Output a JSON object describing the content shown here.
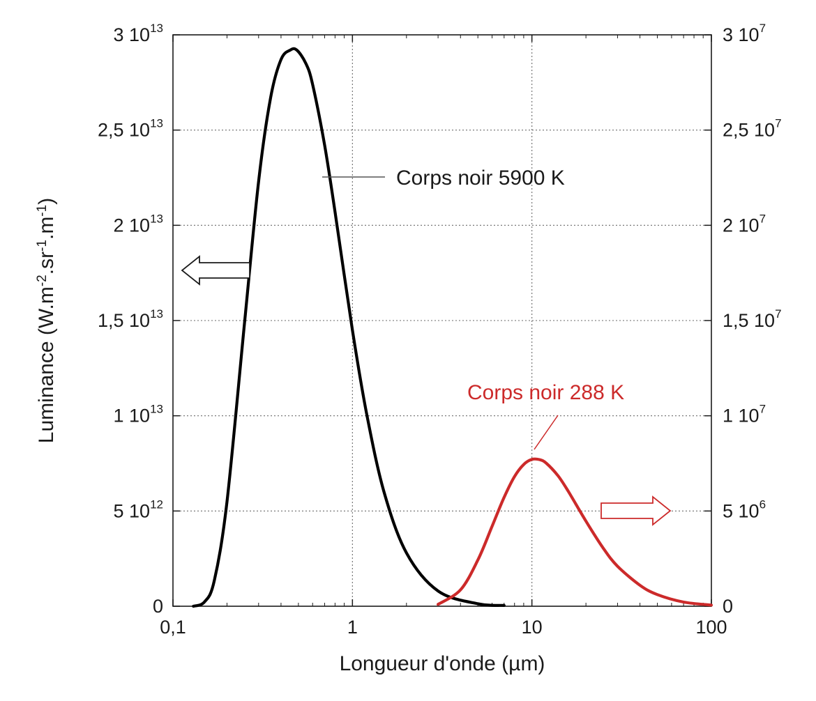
{
  "chart_data": {
    "type": "line",
    "xscale": "log",
    "xlim": [
      0.1,
      100
    ],
    "x_ticks": [
      {
        "value": 0.1,
        "label": "0,1"
      },
      {
        "value": 1,
        "label": "1"
      },
      {
        "value": 10,
        "label": "10"
      },
      {
        "value": 100,
        "label": "100"
      }
    ],
    "xlabel": "Longueur d'onde (µm)",
    "ylabel": "Luminance (W.m-2.sr-1.m-1)",
    "ylabel_parts": [
      {
        "text": "Luminance (W.m",
        "sup": false
      },
      {
        "text": "-2",
        "sup": true
      },
      {
        "text": ".sr",
        "sup": false
      },
      {
        "text": "-1",
        "sup": true
      },
      {
        "text": ".m",
        "sup": false
      },
      {
        "text": "-1",
        "sup": true
      },
      {
        "text": ")",
        "sup": false
      }
    ],
    "ylim_left": [
      0,
      30000000000000.0
    ],
    "ylim_right": [
      0,
      30000000.0
    ],
    "y_ticks_left": [
      {
        "value": 0,
        "mant": "0",
        "exp": ""
      },
      {
        "value": 5000000000000.0,
        "mant": "5 10",
        "exp": "12"
      },
      {
        "value": 10000000000000.0,
        "mant": "1 10",
        "exp": "13"
      },
      {
        "value": 15000000000000.0,
        "mant": "1,5 10",
        "exp": "13"
      },
      {
        "value": 20000000000000.0,
        "mant": "2 10",
        "exp": "13"
      },
      {
        "value": 25000000000000.0,
        "mant": "2,5 10",
        "exp": "13"
      },
      {
        "value": 30000000000000.0,
        "mant": "3 10",
        "exp": "13"
      }
    ],
    "y_ticks_right": [
      {
        "value": 0,
        "mant": "0",
        "exp": ""
      },
      {
        "value": 5000000.0,
        "mant": "5 10",
        "exp": "6"
      },
      {
        "value": 10000000.0,
        "mant": "1 10",
        "exp": "7"
      },
      {
        "value": 15000000.0,
        "mant": "1,5 10",
        "exp": "7"
      },
      {
        "value": 20000000.0,
        "mant": "2 10",
        "exp": "7"
      },
      {
        "value": 25000000.0,
        "mant": "2,5 10",
        "exp": "7"
      },
      {
        "value": 30000000.0,
        "mant": "3 10",
        "exp": "7"
      }
    ],
    "grid": true,
    "series": [
      {
        "name": "Corps noir 5900 K",
        "axis": "left",
        "color": "#000000",
        "x": [
          0.13,
          0.15,
          0.17,
          0.2,
          0.25,
          0.3,
          0.35,
          0.4,
          0.45,
          0.49,
          0.55,
          0.6,
          0.7,
          0.8,
          1.0,
          1.2,
          1.5,
          2.0,
          3.0,
          5.0,
          7.0
        ],
        "y": [
          0,
          230000000000.0,
          1350000000000.0,
          5500000000000.0,
          14800000000000.0,
          22300000000000.0,
          26700000000000.0,
          28700000000000.0,
          29200000000000.0,
          29200000000000.0,
          28500000000000.0,
          27400000000000.0,
          24200000000000.0,
          20700000000000.0,
          14500000000000.0,
          10100000000000.0,
          6000000000000.0,
          2800000000000.0,
          800000000000.0,
          130000000000.0,
          40000000000.0
        ]
      },
      {
        "name": "Corps noir 288 K",
        "axis": "right",
        "color": "#cc2a2a",
        "x": [
          3.0,
          4.0,
          5.0,
          6.0,
          7.0,
          8.0,
          9.0,
          10.0,
          11.0,
          12.0,
          14.0,
          16.0,
          20.0,
          25.0,
          30.0,
          40.0,
          50.0,
          70.0,
          100.0
        ],
        "y": [
          100000.0,
          860000.0,
          2430000.0,
          4200000.0,
          5720000.0,
          6810000.0,
          7440000.0,
          7710000.0,
          7700000.0,
          7520000.0,
          6840000.0,
          6010000.0,
          4470000.0,
          3040000.0,
          2100000.0,
          1100000.0,
          610000.0,
          220000.0,
          60000.0
        ]
      }
    ],
    "annotations": [
      {
        "text": "Corps noir 5900 K",
        "color": "#1a1a1a"
      },
      {
        "text": "Corps noir 288 K",
        "color": "#cc2a2a"
      }
    ]
  }
}
